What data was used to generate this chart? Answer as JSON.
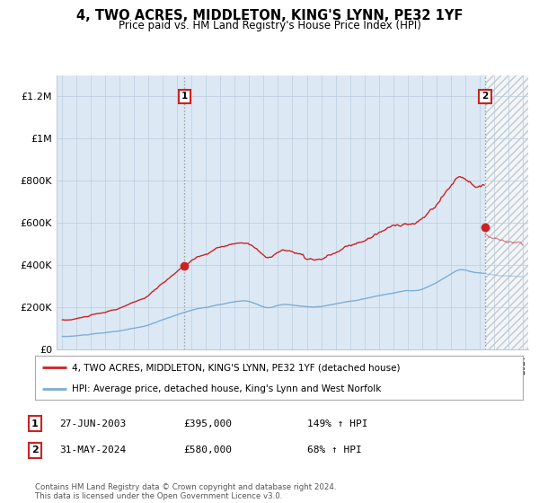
{
  "title": "4, TWO ACRES, MIDDLETON, KING'S LYNN, PE32 1YF",
  "subtitle": "Price paid vs. HM Land Registry's House Price Index (HPI)",
  "ylim": [
    0,
    1300000
  ],
  "yticks": [
    0,
    200000,
    400000,
    600000,
    800000,
    1000000,
    1200000
  ],
  "ytick_labels": [
    "£0",
    "£200K",
    "£400K",
    "£600K",
    "£800K",
    "£1M",
    "£1.2M"
  ],
  "hpi_color": "#7eadd4",
  "price_color": "#cc2222",
  "bg_color": "#dce9f5",
  "legend_line1": "4, TWO ACRES, MIDDLETON, KING'S LYNN, PE32 1YF (detached house)",
  "legend_line2": "HPI: Average price, detached house, King's Lynn and West Norfolk",
  "table_row1": [
    "1",
    "27-JUN-2003",
    "£395,000",
    "149% ↑ HPI"
  ],
  "table_row2": [
    "2",
    "31-MAY-2024",
    "£580,000",
    "68% ↑ HPI"
  ],
  "footer": "Contains HM Land Registry data © Crown copyright and database right 2024.\nThis data is licensed under the Open Government Licence v3.0.",
  "grid_color": "#bbccdd",
  "sale1_year": 2003.5,
  "sale1_price": 395000,
  "sale2_year": 2024.4,
  "sale2_price": 580000,
  "xmin": 1994.6,
  "xmax": 2027.4,
  "hatch_start": 2024.4
}
